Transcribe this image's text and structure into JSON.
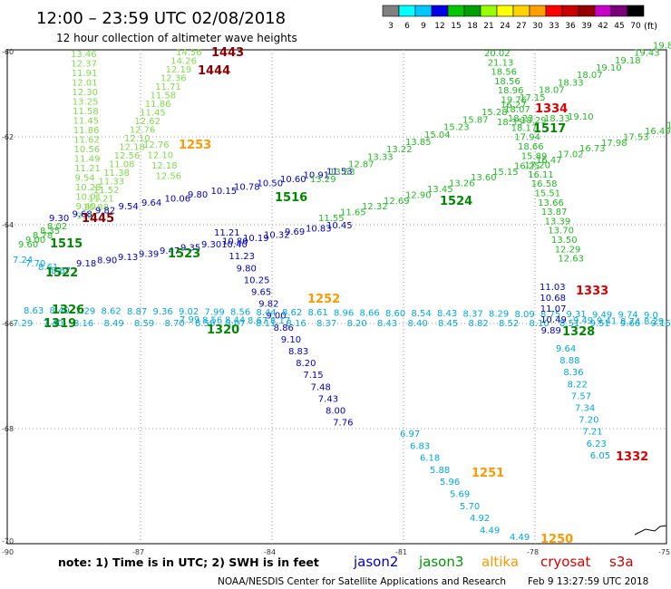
{
  "header": {
    "title": "12:00 – 23:59 UTC 02/08/2018",
    "subtitle": "12 hour collection of altimeter wave heights"
  },
  "legend": {
    "unit": "(ft)",
    "bins": [
      {
        "label": "3",
        "color": "#808080"
      },
      {
        "label": "6",
        "color": "#00ffff"
      },
      {
        "label": "9",
        "color": "#00c8ff"
      },
      {
        "label": "12",
        "color": "#0000e6"
      },
      {
        "label": "15",
        "color": "#00c800"
      },
      {
        "label": "18",
        "color": "#00a000"
      },
      {
        "label": "21",
        "color": "#96ff00"
      },
      {
        "label": "24",
        "color": "#ffff00"
      },
      {
        "label": "27",
        "color": "#ffd200"
      },
      {
        "label": "30",
        "color": "#ffa000"
      },
      {
        "label": "33",
        "color": "#ff0000"
      },
      {
        "label": "36",
        "color": "#c80000"
      },
      {
        "label": "39",
        "color": "#960000"
      },
      {
        "label": "42",
        "color": "#c800c8"
      },
      {
        "label": "45",
        "color": "#780078"
      },
      {
        "label": "70",
        "color": "#000000"
      }
    ]
  },
  "axes": {
    "lat_labels": [
      "-60",
      "-62",
      "-64",
      "-66",
      "-68",
      "-70"
    ],
    "lon_labels": [
      "-90",
      "-87",
      "-84",
      "-81",
      "-78",
      "-75"
    ]
  },
  "tracks": [
    {
      "name": "track-1443",
      "time": "1443",
      "time_color": "#8b0000",
      "value_color": "#7fdc4a",
      "values": [
        "13.46",
        "12.37",
        "11.91",
        "12.01",
        "12.30",
        "13.25",
        "11.58",
        "11.45",
        "11.86",
        "11.62",
        "10.56",
        "11.49",
        "11.21",
        "9.54",
        "10.28",
        "10.01",
        "9.40",
        "9.30"
      ]
    },
    {
      "name": "track-1444",
      "time": "1444",
      "time_color": "#8b0000",
      "value_color": "#7fdc4a",
      "values": [
        "14.56",
        "14.26",
        "12.19",
        "12.36",
        "11.71",
        "11.58",
        "11.86",
        "11.45",
        "12.62",
        "12.76",
        "12.10",
        "12.18",
        "12.56",
        "11.08",
        "11.38",
        "11.33",
        "11.52",
        "11.21",
        "10.88"
      ]
    },
    {
      "name": "track-1445",
      "time": "1445",
      "time_color": "#8b0000",
      "value_color": "#0000cc",
      "values": [
        "9.30",
        "9.68",
        "9.82",
        "9.54",
        "9.64",
        "10.06",
        "9.80",
        "10.15",
        "10.78",
        "10.50",
        "10.60",
        "10.91",
        "11.53"
      ]
    },
    {
      "name": "track-1253",
      "time": "1253",
      "time_color": "#ff9900",
      "value_color": "#7fdc4a",
      "values": [
        "12.76",
        "12.10",
        "12.18",
        "12.56"
      ]
    },
    {
      "name": "track-1516",
      "time": "1516",
      "time_color": "#008800",
      "value_color": "#22bb22",
      "values": [
        "13.29",
        "13.53",
        "12.87",
        "13.33",
        "13.22",
        "13.85",
        "15.04",
        "15.23",
        "15.87",
        "15.28",
        "16.27",
        "17.15",
        "18.07",
        "18.33",
        "18.07",
        "19.10",
        "19.18",
        "19.43",
        "19.8"
      ]
    },
    {
      "name": "track-1524",
      "time": "1524",
      "time_color": "#008800",
      "value_color": "#22bb22",
      "values": [
        "11.55",
        "11.65",
        "12.32",
        "12.69",
        "12.90",
        "13.45",
        "13.26",
        "13.60",
        "15.15",
        "16.25",
        "16.47",
        "17.02",
        "16.73",
        "17.98",
        "17.53",
        "16.49",
        "16.9"
      ]
    },
    {
      "name": "track-1515",
      "time": "1515",
      "time_color": "#008800",
      "value_color": "#22bb22",
      "values": [
        "9.60",
        "9.00",
        "8.78",
        "8.35",
        "8.02"
      ]
    },
    {
      "name": "track-1523",
      "time": "1523",
      "time_color": "#008800",
      "value_color": "#0000cc",
      "values": [
        "9.18",
        "8.90",
        "9.13",
        "9.39",
        "9.47",
        "9.35",
        "9.30",
        "10.80",
        "10.19",
        "10.32",
        "9.69",
        "10.83",
        "10.45"
      ]
    },
    {
      "name": "track-1522",
      "time": "1522",
      "time_color": "#008800",
      "value_color": "#00aadd",
      "values": [
        "7.24",
        "7.70",
        "8.61",
        "8.67"
      ]
    },
    {
      "name": "track-1252",
      "time": "1252",
      "time_color": "#ff9900",
      "value_color": "#0000cc",
      "values": [
        "11.21",
        "10.40",
        "11.23",
        "9.80",
        "10.25",
        "9.65",
        "9.82",
        "9.00",
        "8.86",
        "9.10",
        "8.83",
        "8.20",
        "7.15",
        "7.48",
        "7.43",
        "8.00",
        "7.76"
      ]
    },
    {
      "name": "track-1251",
      "time": "1251",
      "time_color": "#ff9900",
      "value_color": "#00aadd",
      "values": [
        "6.97",
        "6.83",
        "6.18",
        "5.88",
        "5.96",
        "5.69",
        "5.70",
        "4.92",
        "4.49"
      ]
    },
    {
      "name": "track-1250",
      "time": "1250",
      "time_color": "#ff9900",
      "value_color": "#00aadd",
      "values": [
        "4.49"
      ]
    },
    {
      "name": "track-1326",
      "time": "1326",
      "time_color": "#008800",
      "value_color": "#00aadd",
      "values": [
        "8.63",
        "8.40",
        "7.29",
        "8.62",
        "8.87",
        "9.36",
        "9.02",
        "7.99",
        "8.56",
        "8.44",
        "8.62",
        "8.61",
        "8.96",
        "8.66",
        "8.60",
        "8.54",
        "8.43",
        "8.37",
        "8.29",
        "8.09",
        "8.75",
        "9.31",
        "9.49",
        "9.74",
        "9.0"
      ]
    },
    {
      "name": "track-1319",
      "time": "1319",
      "time_color": "#008800",
      "value_color": "#00aadd",
      "values": [
        "7.29",
        "7.40",
        "8.16",
        "8.49",
        "8.59",
        "8.70",
        "8.58",
        "8.07",
        "8.11",
        "8.16",
        "8.37",
        "8.20",
        "8.43",
        "8.40",
        "8.45",
        "8.82",
        "8.52",
        "8.10",
        "8.51",
        "9.51",
        "9.66",
        "9.16"
      ]
    },
    {
      "name": "track-1320",
      "time": "1320",
      "time_color": "#008800",
      "value_color": "#00aadd",
      "values": [
        "7.99",
        "8.56",
        "8.44",
        "8.67",
        "8.17"
      ]
    },
    {
      "name": "track-1334",
      "time": "1334",
      "time_color": "#dd0000",
      "value_color": "#22bb22",
      "values": [
        "20.02",
        "21.13",
        "18.56",
        "18.56",
        "18.96",
        "19.76",
        "18.07",
        "18.23",
        "18.17",
        "17.94",
        "18.66",
        "15.89",
        "17.20",
        "16.11",
        "16.58",
        "15.51",
        "13.66",
        "13.87",
        "13.39",
        "13.70",
        "13.50",
        "12.29",
        "12.63"
      ]
    },
    {
      "name": "track-1517",
      "time": "1517",
      "time_color": "#008800",
      "value_color": "#22bb22",
      "values": [
        "18.35",
        "18.29",
        "18.33",
        "19.10"
      ]
    },
    {
      "name": "track-1333",
      "time": "1333",
      "time_color": "#dd0000",
      "value_color": "#0000cc",
      "values": [
        "11.03",
        "10.68",
        "11.07",
        "10.49",
        "9.89"
      ]
    },
    {
      "name": "track-1332",
      "time": "1332",
      "time_color": "#dd0000",
      "value_color": "#00aadd",
      "values": [
        "9.64",
        "8.88",
        "8.36",
        "8.22",
        "7.57",
        "7.34",
        "7.20",
        "7.21",
        "6.23",
        "6.05"
      ]
    },
    {
      "name": "track-1328",
      "time": "1328",
      "time_color": "#008800",
      "value_color": "#00aadd",
      "values": [
        "9.49",
        "9.41",
        "8.74",
        "8.29"
      ]
    }
  ],
  "footer": {
    "note": "note:  1) Time is in UTC;  2) SWH is in feet",
    "satellites": [
      {
        "name": "jason2",
        "color": "#0000cc"
      },
      {
        "name": "jason3",
        "color": "#009900"
      },
      {
        "name": "altika",
        "color": "#ff9900"
      },
      {
        "name": "cryosat",
        "color": "#dd0000"
      },
      {
        "name": "s3a",
        "color": "#cc0000"
      }
    ],
    "credit": "NOAA/NESDIS Center for Satellite Applications and Research",
    "generated": "Feb  9 13:27:59 UTC 2018"
  }
}
